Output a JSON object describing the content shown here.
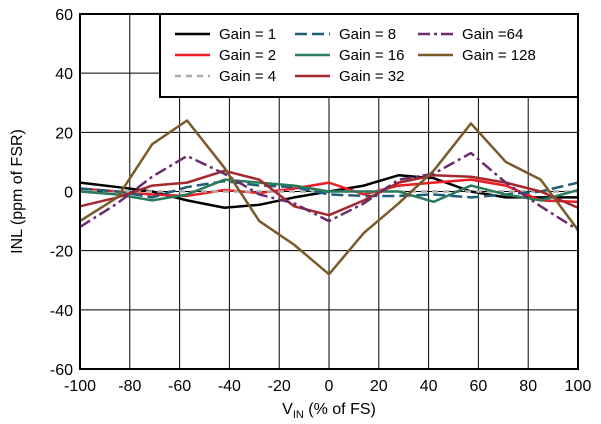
{
  "chart_data": {
    "type": "line",
    "xlabel_main": "V",
    "xlabel_sub": "IN",
    "xlabel_rest": " (% of FS)",
    "ylabel": "INL (ppm of FSR)",
    "xlim": [
      -100,
      100
    ],
    "ylim": [
      -60,
      60
    ],
    "xticks": [
      -100,
      -80,
      -60,
      -40,
      -20,
      0,
      20,
      40,
      60,
      80,
      100
    ],
    "yticks": [
      -60,
      -40,
      -20,
      0,
      20,
      40,
      60
    ],
    "grid": true,
    "legend_position": "top-right",
    "x": [
      -100,
      -85,
      -71,
      -57,
      -42,
      -28,
      -14,
      0,
      14,
      28,
      42,
      57,
      71,
      85,
      100
    ],
    "series": [
      {
        "name": "Gain = 1",
        "color": "#000000",
        "dash": "solid",
        "values": [
          3,
          1.5,
          0,
          -3,
          -5.5,
          -4.5,
          -2,
          0,
          2,
          5.5,
          4.5,
          0,
          -2,
          -2,
          -2
        ]
      },
      {
        "name": "Gain = 2",
        "color": "#ee1c25",
        "dash": "solid",
        "values": [
          1,
          0,
          -1,
          -1.5,
          0.5,
          -0.5,
          1,
          3,
          -1,
          2,
          3,
          4,
          2,
          -3,
          -3.5
        ]
      },
      {
        "name": "Gain = 4",
        "color": "#aaaaaa",
        "dash": "6,5",
        "values": [
          0,
          0,
          0,
          0,
          0,
          0,
          0,
          0,
          0,
          0,
          0,
          0,
          0,
          0,
          0
        ]
      },
      {
        "name": "Gain = 8",
        "color": "#1e5f76",
        "dash": "12,5",
        "values": [
          1,
          0,
          -2,
          1.5,
          3.5,
          2,
          1.5,
          -1,
          -1.5,
          -1.5,
          -1,
          -2,
          -1,
          0,
          3
        ]
      },
      {
        "name": "Gain = 16",
        "color": "#2b7a5c",
        "dash": "solid",
        "values": [
          0,
          -1,
          -3,
          -1,
          4,
          3,
          2,
          0,
          0,
          0,
          -3.5,
          2,
          -1,
          -3,
          0.5
        ]
      },
      {
        "name": "Gain = 32",
        "color": "#a4282c",
        "dash": "solid",
        "values": [
          -5,
          -2,
          2,
          3,
          7,
          4,
          -5,
          -8,
          -3,
          3,
          5.5,
          5,
          3,
          0,
          -5.5
        ]
      },
      {
        "name": "Gain =64",
        "color": "#6b2c6b",
        "dash": "12,4,3,4",
        "values": [
          -12,
          -4,
          5,
          12,
          6,
          -1,
          -4,
          -10,
          -4,
          4,
          6,
          13,
          3,
          -5,
          -13
        ]
      },
      {
        "name": "Gain = 128",
        "color": "#7a5a2a",
        "dash": "solid",
        "values": [
          -10,
          -2,
          16,
          24,
          8,
          -10,
          -18,
          -28,
          -14,
          -4,
          7,
          23,
          10,
          4,
          -13
        ]
      }
    ]
  }
}
